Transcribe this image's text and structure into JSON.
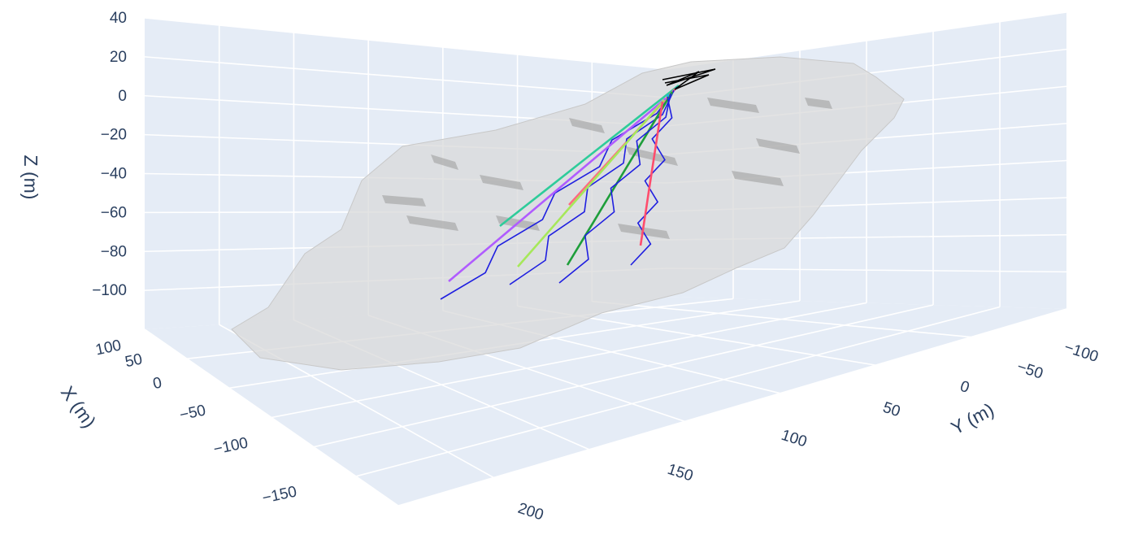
{
  "chart_data": {
    "type": "3d-surface-with-lines",
    "axes": {
      "x": {
        "label": "X (m)",
        "ticks": [
          100,
          50,
          0,
          -50,
          -100,
          -150
        ]
      },
      "y": {
        "label": "Y (m)",
        "ticks": [
          -100,
          -50,
          0,
          50,
          100,
          150,
          200
        ]
      },
      "z": {
        "label": "Z (m)",
        "ticks": [
          40,
          20,
          0,
          -20,
          -40,
          -60,
          -80,
          -100
        ]
      }
    },
    "colors": {
      "pane": "#e5ecf6",
      "grid": "#ffffff",
      "surface": "#d3d3d3",
      "text": "#2a3f5f",
      "trajectory_head": "#000000"
    },
    "boreholes": [
      {
        "color": "#2ecc9a",
        "kind": "planned"
      },
      {
        "color": "#1f1fe0",
        "kind": "actual"
      },
      {
        "color": "#ff6b81",
        "kind": "planned"
      },
      {
        "color": "#1f1fe0",
        "kind": "actual"
      },
      {
        "color": "#1e9e3a",
        "kind": "planned"
      },
      {
        "color": "#1f1fe0",
        "kind": "actual"
      },
      {
        "color": "#22b4e6",
        "kind": "planned"
      },
      {
        "color": "#1f1fe0",
        "kind": "actual"
      },
      {
        "color": "#b05cff",
        "kind": "planned"
      },
      {
        "color": "#a6e85a",
        "kind": "planned"
      },
      {
        "color": "#ff4d6d",
        "kind": "planned"
      }
    ]
  }
}
